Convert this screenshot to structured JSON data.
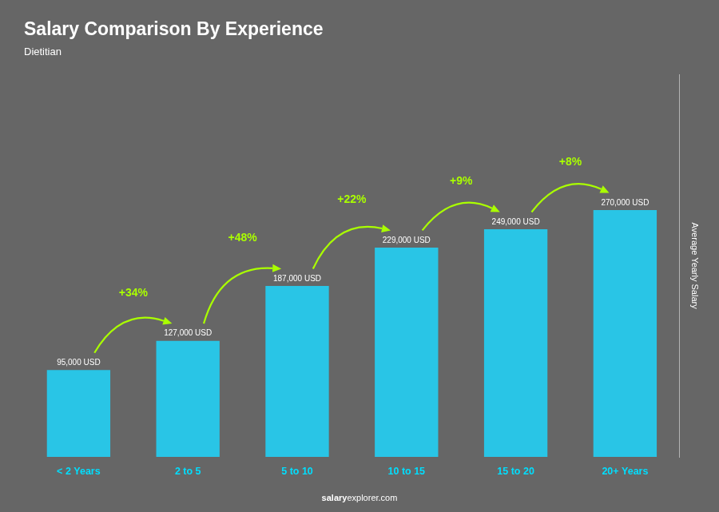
{
  "chart_data": {
    "type": "bar",
    "title": "Salary Comparison By Experience",
    "subtitle": "Dietitian",
    "ylabel": "Average Yearly Salary",
    "categories": [
      "< 2 Years",
      "2 to 5",
      "5 to 10",
      "10 to 15",
      "15 to 20",
      "20+ Years"
    ],
    "values": [
      95000,
      127000,
      187000,
      229000,
      249000,
      270000
    ],
    "value_labels": [
      "95,000 USD",
      "127,000 USD",
      "187,000 USD",
      "229,000 USD",
      "249,000 USD",
      "270,000 USD"
    ],
    "data_labels": true,
    "annotations": [
      "+34%",
      "+48%",
      "+22%",
      "+9%",
      "+8%"
    ],
    "footer": [
      "salary",
      "explorer.com"
    ],
    "color": "#29c5e6",
    "ylim": [
      0,
      418500
    ],
    "grid": false,
    "tick_labels": "x"
  }
}
